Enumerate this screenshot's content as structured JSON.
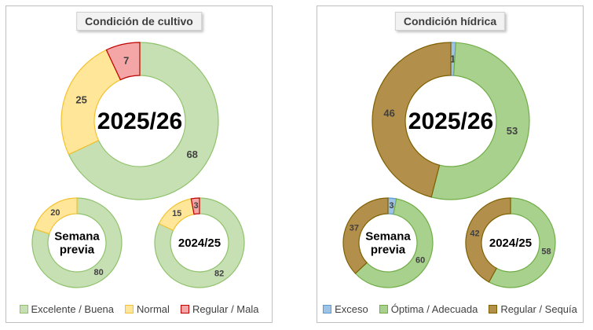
{
  "chart_data": [
    {
      "type": "donut",
      "title": "Condición de cultivo",
      "categories": [
        "Excelente / Buena",
        "Normal",
        "Regular / Mala"
      ],
      "colors": [
        "#c6e0b4",
        "#ffe699",
        "#f4a6a6"
      ],
      "borders": [
        "#8fc26b",
        "#f2c230",
        "#c00000"
      ],
      "rings": [
        {
          "label": "2025/26",
          "values": [
            68,
            25,
            7
          ],
          "labels": [
            "68",
            "25",
            "7"
          ]
        },
        {
          "label": "Semana previa",
          "label_lines": [
            "Semana",
            "previa"
          ],
          "values": [
            80,
            20,
            0
          ],
          "labels": [
            "80",
            "20",
            ""
          ]
        },
        {
          "label": "2024/25",
          "values": [
            82,
            15,
            3
          ],
          "labels": [
            "82",
            "15",
            "3"
          ]
        }
      ]
    },
    {
      "type": "donut",
      "title": "Condición hídrica",
      "categories": [
        "Exceso",
        "Óptima / Adecuada",
        "Regular / Sequía"
      ],
      "colors": [
        "#9dc3e6",
        "#a9d18e",
        "#b38f4c"
      ],
      "borders": [
        "#5b9bd5",
        "#70ad47",
        "#7f6000"
      ],
      "rings": [
        {
          "label": "2025/26",
          "values": [
            1,
            53,
            46
          ],
          "labels": [
            "1",
            "53",
            "46"
          ]
        },
        {
          "label": "Semana previa",
          "label_lines": [
            "Semana",
            "previa"
          ],
          "values": [
            3,
            60,
            37
          ],
          "labels": [
            "3",
            "60",
            "37"
          ]
        },
        {
          "label": "2024/25",
          "values": [
            0,
            58,
            42
          ],
          "labels": [
            "",
            "58",
            "42"
          ]
        }
      ]
    }
  ]
}
